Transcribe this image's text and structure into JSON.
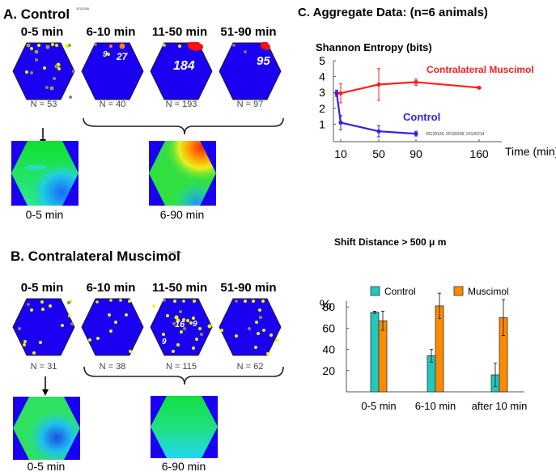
{
  "panel_a": {
    "title": "A. Control",
    "date_tag": "20120206",
    "bins": [
      {
        "label": "0-5 min",
        "n_label": "N = 53",
        "count_labels": []
      },
      {
        "label": "6-10 min",
        "n_label": "N = 40",
        "count_labels": [
          "9",
          "27"
        ]
      },
      {
        "label": "11-50 min",
        "n_label": "N = 193",
        "count_labels": [
          "184"
        ]
      },
      {
        "label": "51-90 min",
        "n_label": "N = 97",
        "count_labels": [
          "95"
        ]
      }
    ],
    "maps": [
      {
        "label": "0-5 min"
      },
      {
        "label": "6-90 min"
      }
    ]
  },
  "panel_b": {
    "title": "B. Contralateral Muscimol",
    "date_tag": "20120208",
    "bins": [
      {
        "label": "0-5 min",
        "n_label": "N = 31",
        "count_labels": []
      },
      {
        "label": "6-10 min",
        "n_label": "N = 38",
        "count_labels": []
      },
      {
        "label": "11-50 min",
        "n_label": "N = 115",
        "count_labels": [
          "16",
          "9",
          "9"
        ]
      },
      {
        "label": "51-90 min",
        "n_label": "N = 62",
        "count_labels": []
      }
    ],
    "maps": [
      {
        "label": "0-5 min"
      },
      {
        "label": "6-90 min"
      }
    ]
  },
  "panel_c": {
    "title": "C. Aggregate Data:  (n=6 animals)"
  },
  "colors": {
    "control_line": "#3a1fe0",
    "muscimol_line": "#ff2020",
    "control_bar": "#20c8c0",
    "muscimol_bar": "#ff8a00",
    "hex_fill": "#1a00f0",
    "dot_yellow": "#f0f000",
    "dot_red": "#ff1010"
  },
  "chart_data": [
    {
      "type": "line",
      "title": "Shannon Entropy (bits)",
      "xlabel": "Time (min)",
      "ylabel": "",
      "x_ticks": [
        10,
        50,
        90,
        160
      ],
      "y_ticks": [
        1,
        2,
        3,
        4,
        5
      ],
      "ylim": [
        0,
        5
      ],
      "xlim": [
        0,
        175
      ],
      "annotation": "20120126, 20120206, 20120214",
      "series": [
        {
          "name": "Contralateral Muscimol",
          "x": [
            5,
            10,
            50,
            90,
            160
          ],
          "y": [
            2.95,
            2.95,
            3.5,
            3.65,
            3.3
          ],
          "err": [
            0.15,
            0.6,
            1.0,
            0.2,
            0.0
          ]
        },
        {
          "name": "Control",
          "x": [
            5,
            10,
            50,
            90
          ],
          "y": [
            2.95,
            1.1,
            0.55,
            0.4
          ],
          "err": [
            0.2,
            0.45,
            0.35,
            0.15
          ]
        }
      ]
    },
    {
      "type": "bar",
      "title": "Shift Distance > 500 μ m",
      "ylabel": "%",
      "xlabel": "",
      "categories": [
        "0-5 min",
        "6-10 min",
        "after 10 min"
      ],
      "y_ticks": [
        20,
        40,
        60,
        80
      ],
      "ylim": [
        0,
        100
      ],
      "legend": "top",
      "series": [
        {
          "name": "Control",
          "values": [
            75,
            34,
            16
          ],
          "err": [
            1,
            6,
            11
          ]
        },
        {
          "name": "Muscimol",
          "values": [
            67,
            81,
            70
          ],
          "err": [
            9,
            12,
            17
          ]
        }
      ]
    }
  ]
}
